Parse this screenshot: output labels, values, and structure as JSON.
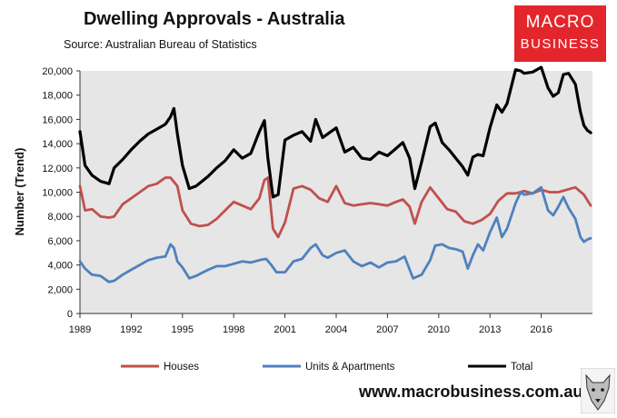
{
  "header": {
    "title": "Dwelling Approvals - Australia",
    "source": "Source:   Australian Bureau of Statistics"
  },
  "logo": {
    "line1": "MACRO",
    "line2": "BUSINESS"
  },
  "footer": {
    "website": "www.macrobusiness.com.au"
  },
  "colors": {
    "houses": "#c0504d",
    "units": "#4f81bd",
    "total": "#000000",
    "plot_bg": "#e6e6e6",
    "logo_bg": "#e3262c"
  },
  "chart_data": {
    "type": "line",
    "ylabel": "Number (Trend)",
    "ylim": [
      0,
      20000
    ],
    "xlim": [
      1989,
      2019
    ],
    "yticks": [
      "0",
      "2,000",
      "4,000",
      "6,000",
      "8,000",
      "10,000",
      "12,000",
      "14,000",
      "16,000",
      "18,000",
      "20,000"
    ],
    "xticks": [
      "1989",
      "1992",
      "1995",
      "1998",
      "2001",
      "2004",
      "2007",
      "2010",
      "2013",
      "2016"
    ],
    "grid": false,
    "legend_position": "bottom",
    "series": [
      {
        "name": "Houses",
        "x": [
          1989.0,
          1989.3,
          1989.7,
          1990.2,
          1990.7,
          1991.0,
          1991.5,
          1992.0,
          1992.5,
          1993.0,
          1993.5,
          1994.0,
          1994.3,
          1994.7,
          1995.0,
          1995.5,
          1996.0,
          1996.5,
          1997.0,
          1997.5,
          1998.0,
          1998.5,
          1999.0,
          1999.5,
          1999.8,
          2000.0,
          2000.3,
          2000.6,
          2001.0,
          2001.5,
          2002.0,
          2002.5,
          2003.0,
          2003.5,
          2004.0,
          2004.5,
          2005.0,
          2005.5,
          2006.0,
          2006.5,
          2007.0,
          2007.5,
          2007.9,
          2008.3,
          2008.6,
          2009.0,
          2009.5,
          2010.0,
          2010.5,
          2011.0,
          2011.5,
          2012.0,
          2012.5,
          2013.0,
          2013.5,
          2014.0,
          2014.5,
          2015.0,
          2015.5,
          2016.0,
          2016.5,
          2017.0,
          2017.5,
          2018.0,
          2018.5,
          2018.9
        ],
        "values": [
          10500,
          8500,
          8600,
          8000,
          7900,
          8000,
          9000,
          9500,
          10000,
          10500,
          10700,
          11200,
          11200,
          10500,
          8500,
          7400,
          7200,
          7300,
          7800,
          8500,
          9200,
          8900,
          8600,
          9500,
          11000,
          11200,
          7000,
          6300,
          7500,
          10300,
          10500,
          10200,
          9500,
          9200,
          10500,
          9100,
          8900,
          9000,
          9100,
          9000,
          8900,
          9200,
          9400,
          8800,
          7400,
          9200,
          10400,
          9500,
          8600,
          8400,
          7600,
          7400,
          7700,
          8200,
          9300,
          9900,
          9900,
          10100,
          9900,
          10200,
          10000,
          10000,
          10200,
          10400,
          9800,
          8900
        ]
      },
      {
        "name": "Units & Apartments",
        "x": [
          1989.0,
          1989.3,
          1989.7,
          1990.2,
          1990.7,
          1991.0,
          1991.5,
          1992.0,
          1992.5,
          1993.0,
          1993.5,
          1994.0,
          1994.3,
          1994.5,
          1994.7,
          1995.0,
          1995.4,
          1995.8,
          1996.5,
          1997.0,
          1997.5,
          1998.0,
          1998.5,
          1999.0,
          1999.5,
          1999.9,
          2000.2,
          2000.5,
          2001.0,
          2001.5,
          2002.0,
          2002.5,
          2002.8,
          2003.2,
          2003.5,
          2004.0,
          2004.5,
          2005.0,
          2005.5,
          2006.0,
          2006.5,
          2007.0,
          2007.5,
          2008.0,
          2008.5,
          2009.0,
          2009.5,
          2009.8,
          2010.2,
          2010.6,
          2011.0,
          2011.4,
          2011.7,
          2012.0,
          2012.3,
          2012.6,
          2013.0,
          2013.4,
          2013.7,
          2014.0,
          2014.5,
          2014.8,
          2015.0,
          2015.5,
          2016.0,
          2016.4,
          2016.7,
          2017.0,
          2017.3,
          2017.6,
          2018.0,
          2018.3,
          2018.5,
          2018.7,
          2018.9
        ],
        "values": [
          4300,
          3700,
          3200,
          3100,
          2600,
          2700,
          3200,
          3600,
          4000,
          4400,
          4600,
          4700,
          5700,
          5400,
          4300,
          3800,
          2900,
          3100,
          3600,
          3900,
          3900,
          4100,
          4300,
          4200,
          4400,
          4500,
          4000,
          3400,
          3400,
          4300,
          4500,
          5400,
          5700,
          4800,
          4600,
          5000,
          5200,
          4300,
          3900,
          4200,
          3800,
          4200,
          4300,
          4700,
          2900,
          3200,
          4400,
          5600,
          5700,
          5400,
          5300,
          5100,
          3700,
          4800,
          5700,
          5200,
          6700,
          7900,
          6300,
          7000,
          9100,
          10000,
          9800,
          9900,
          10400,
          8500,
          8100,
          8800,
          9600,
          8700,
          7800,
          6300,
          5900,
          6100,
          6200
        ]
      },
      {
        "name": "Total",
        "x": [
          1989.0,
          1989.3,
          1989.7,
          1990.2,
          1990.7,
          1991.0,
          1991.5,
          1992.0,
          1992.5,
          1993.0,
          1993.5,
          1994.0,
          1994.3,
          1994.5,
          1994.7,
          1995.0,
          1995.4,
          1995.8,
          1996.5,
          1997.0,
          1997.5,
          1998.0,
          1998.5,
          1999.0,
          1999.5,
          1999.8,
          2000.0,
          2000.3,
          2000.6,
          2001.0,
          2001.5,
          2002.0,
          2002.5,
          2002.8,
          2003.2,
          2003.5,
          2004.0,
          2004.5,
          2005.0,
          2005.5,
          2006.0,
          2006.5,
          2007.0,
          2007.5,
          2007.9,
          2008.3,
          2008.6,
          2009.0,
          2009.5,
          2009.8,
          2010.2,
          2010.6,
          2011.0,
          2011.4,
          2011.7,
          2012.0,
          2012.3,
          2012.6,
          2013.0,
          2013.4,
          2013.7,
          2014.0,
          2014.5,
          2014.8,
          2015.0,
          2015.5,
          2016.0,
          2016.4,
          2016.7,
          2017.0,
          2017.3,
          2017.6,
          2018.0,
          2018.3,
          2018.5,
          2018.7,
          2018.9
        ],
        "values": [
          15000,
          12200,
          11400,
          10900,
          10700,
          12000,
          12700,
          13500,
          14200,
          14800,
          15200,
          15600,
          16200,
          16900,
          14800,
          12200,
          10300,
          10500,
          11300,
          12000,
          12600,
          13500,
          12800,
          13200,
          15000,
          15900,
          12800,
          9600,
          9800,
          14300,
          14700,
          15000,
          14200,
          16000,
          14500,
          14800,
          15300,
          13300,
          13700,
          12800,
          12700,
          13300,
          13000,
          13600,
          14100,
          12800,
          10300,
          12500,
          15400,
          15700,
          14100,
          13500,
          12800,
          12100,
          11400,
          12900,
          13100,
          13000,
          15300,
          17200,
          16600,
          17300,
          20100,
          20000,
          19800,
          19900,
          20300,
          18600,
          17900,
          18200,
          19700,
          19800,
          18900,
          16600,
          15500,
          15100,
          14900
        ]
      }
    ]
  }
}
